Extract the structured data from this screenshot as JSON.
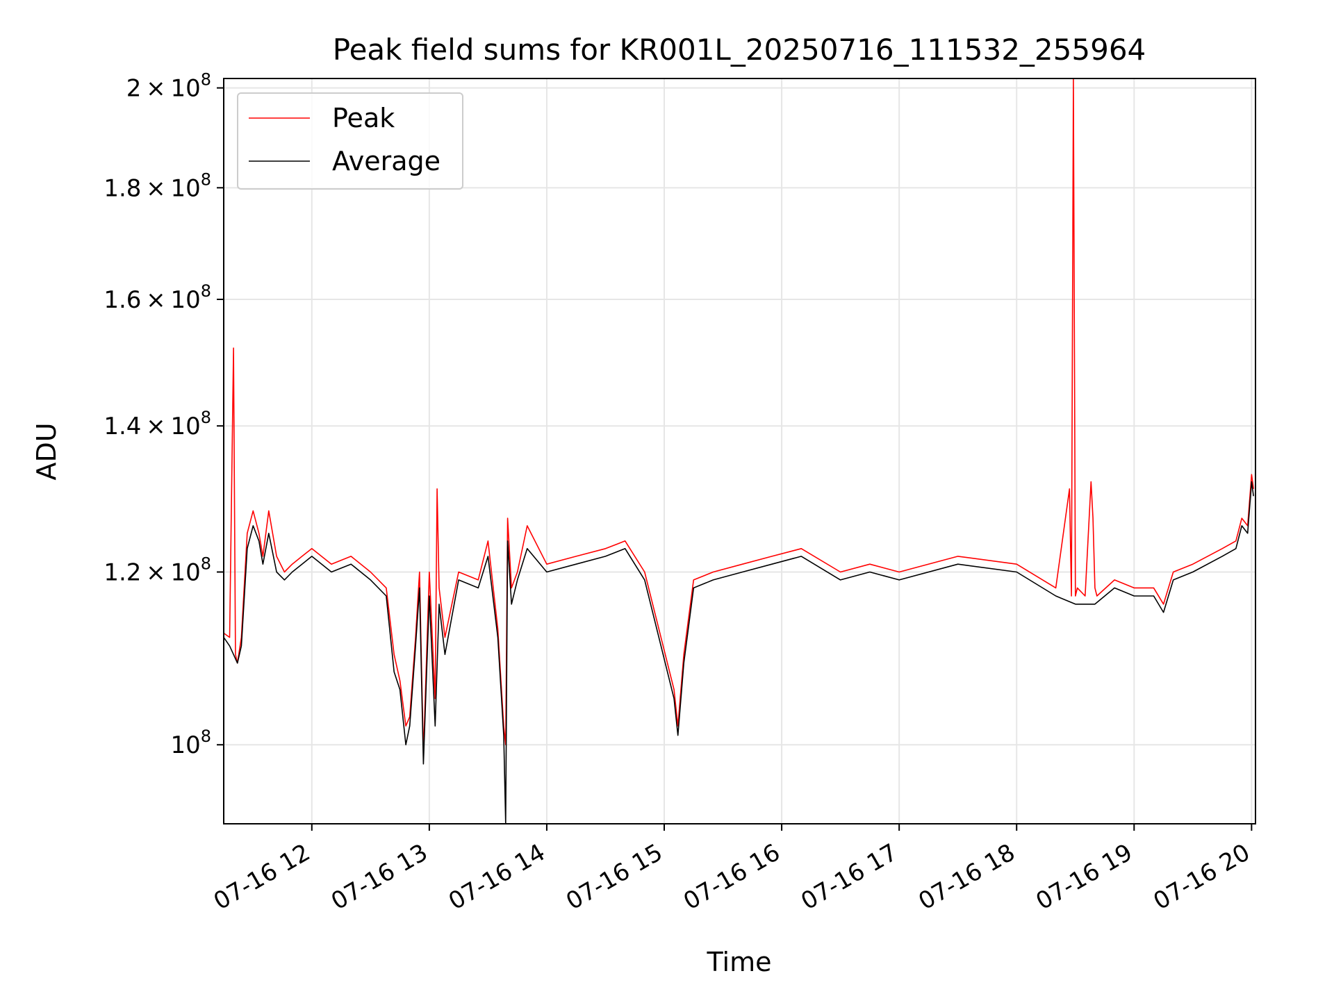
{
  "chart_data": {
    "type": "line",
    "title": "Peak field sums for KR001L_20250716_111532_255964",
    "xlabel": "Time",
    "ylabel": "ADU",
    "yscale": "log",
    "xlim": [
      "2025-07-16 11:15",
      "2025-07-16 20:02"
    ],
    "ylim": [
      92000000.0,
      202000000.0
    ],
    "x_ticks": [
      "07-16 12",
      "07-16 13",
      "07-16 14",
      "07-16 15",
      "07-16 16",
      "07-16 17",
      "07-16 18",
      "07-16 19",
      "07-16 20"
    ],
    "y_ticks": [
      {
        "value": 100000000.0,
        "mantissa": "",
        "exponent": "8"
      },
      {
        "value": 120000000.0,
        "mantissa": "1.2",
        "exponent": "8"
      },
      {
        "value": 140000000.0,
        "mantissa": "1.4",
        "exponent": "8"
      },
      {
        "value": 160000000.0,
        "mantissa": "1.6",
        "exponent": "8"
      },
      {
        "value": 180000000.0,
        "mantissa": "1.8",
        "exponent": "8"
      },
      {
        "value": 200000000.0,
        "mantissa": "2",
        "exponent": "8"
      }
    ],
    "grid": true,
    "legend_position": "upper-left",
    "series": [
      {
        "name": "Peak",
        "color": "#ff0000",
        "x": [
          "2025-07-16 11:15",
          "2025-07-16 11:18",
          "2025-07-16 11:20",
          "2025-07-16 11:21",
          "2025-07-16 11:22",
          "2025-07-16 11:24",
          "2025-07-16 11:27",
          "2025-07-16 11:30",
          "2025-07-16 11:33",
          "2025-07-16 11:35",
          "2025-07-16 11:38",
          "2025-07-16 11:42",
          "2025-07-16 11:46",
          "2025-07-16 11:50",
          "2025-07-16 11:55",
          "2025-07-16 12:00",
          "2025-07-16 12:10",
          "2025-07-16 12:20",
          "2025-07-16 12:30",
          "2025-07-16 12:38",
          "2025-07-16 12:42",
          "2025-07-16 12:45",
          "2025-07-16 12:48",
          "2025-07-16 12:50",
          "2025-07-16 12:53",
          "2025-07-16 12:55",
          "2025-07-16 12:57",
          "2025-07-16 13:00",
          "2025-07-16 13:03",
          "2025-07-16 13:04",
          "2025-07-16 13:05",
          "2025-07-16 13:08",
          "2025-07-16 13:15",
          "2025-07-16 13:25",
          "2025-07-16 13:30",
          "2025-07-16 13:35",
          "2025-07-16 13:38",
          "2025-07-16 13:39",
          "2025-07-16 13:40",
          "2025-07-16 13:42",
          "2025-07-16 13:45",
          "2025-07-16 13:50",
          "2025-07-16 14:00",
          "2025-07-16 14:15",
          "2025-07-16 14:30",
          "2025-07-16 14:40",
          "2025-07-16 14:50",
          "2025-07-16 15:05",
          "2025-07-16 15:07",
          "2025-07-16 15:10",
          "2025-07-16 15:15",
          "2025-07-16 15:25",
          "2025-07-16 15:40",
          "2025-07-16 15:55",
          "2025-07-16 16:10",
          "2025-07-16 16:30",
          "2025-07-16 16:45",
          "2025-07-16 17:00",
          "2025-07-16 17:30",
          "2025-07-16 18:00",
          "2025-07-16 18:20",
          "2025-07-16 18:27",
          "2025-07-16 18:28",
          "2025-07-16 18:29",
          "2025-07-16 18:30",
          "2025-07-16 18:31",
          "2025-07-16 18:35",
          "2025-07-16 18:38",
          "2025-07-16 18:39",
          "2025-07-16 18:40",
          "2025-07-16 18:41",
          "2025-07-16 18:50",
          "2025-07-16 19:00",
          "2025-07-16 19:10",
          "2025-07-16 19:15",
          "2025-07-16 19:20",
          "2025-07-16 19:30",
          "2025-07-16 19:45",
          "2025-07-16 19:52",
          "2025-07-16 19:55",
          "2025-07-16 19:58",
          "2025-07-16 20:00",
          "2025-07-16 20:01"
        ],
        "values": [
          112500000.0,
          112000000.0,
          152000000.0,
          110000000.0,
          109000000.0,
          112000000.0,
          125000000.0,
          128000000.0,
          125000000.0,
          122000000.0,
          128000000.0,
          122000000.0,
          120000000.0,
          121000000.0,
          122000000.0,
          123000000.0,
          121000000.0,
          122000000.0,
          120000000.0,
          118000000.0,
          110000000.0,
          107000000.0,
          102000000.0,
          103000000.0,
          112000000.0,
          120000000.0,
          99000000.0,
          120000000.0,
          105000000.0,
          131000000.0,
          118000000.0,
          112000000.0,
          120000000.0,
          119000000.0,
          124000000.0,
          113000000.0,
          102000000.0,
          100000000.0,
          127000000.0,
          118000000.0,
          120000000.0,
          126000000.0,
          121000000.0,
          122000000.0,
          123000000.0,
          124000000.0,
          120000000.0,
          106000000.0,
          102000000.0,
          110000000.0,
          119000000.0,
          120000000.0,
          121000000.0,
          122000000.0,
          123000000.0,
          120000000.0,
          121000000.0,
          120000000.0,
          122000000.0,
          121000000.0,
          118000000.0,
          131000000.0,
          117000000.0,
          203000000.0,
          117000000.0,
          118000000.0,
          117000000.0,
          132000000.0,
          127000000.0,
          118000000.0,
          117000000.0,
          119000000.0,
          118000000.0,
          118000000.0,
          116000000.0,
          120000000.0,
          121000000.0,
          123000000.0,
          124000000.0,
          127000000.0,
          126000000.0,
          133000000.0,
          131000000.0
        ]
      },
      {
        "name": "Average",
        "color": "#000000",
        "x": [
          "2025-07-16 11:15",
          "2025-07-16 11:18",
          "2025-07-16 11:20",
          "2025-07-16 11:22",
          "2025-07-16 11:24",
          "2025-07-16 11:27",
          "2025-07-16 11:30",
          "2025-07-16 11:33",
          "2025-07-16 11:35",
          "2025-07-16 11:38",
          "2025-07-16 11:42",
          "2025-07-16 11:46",
          "2025-07-16 11:50",
          "2025-07-16 11:55",
          "2025-07-16 12:00",
          "2025-07-16 12:10",
          "2025-07-16 12:20",
          "2025-07-16 12:30",
          "2025-07-16 12:38",
          "2025-07-16 12:42",
          "2025-07-16 12:45",
          "2025-07-16 12:48",
          "2025-07-16 12:50",
          "2025-07-16 12:53",
          "2025-07-16 12:55",
          "2025-07-16 12:57",
          "2025-07-16 13:00",
          "2025-07-16 13:03",
          "2025-07-16 13:05",
          "2025-07-16 13:08",
          "2025-07-16 13:15",
          "2025-07-16 13:25",
          "2025-07-16 13:30",
          "2025-07-16 13:35",
          "2025-07-16 13:38",
          "2025-07-16 13:39",
          "2025-07-16 13:40",
          "2025-07-16 13:42",
          "2025-07-16 13:45",
          "2025-07-16 13:50",
          "2025-07-16 14:00",
          "2025-07-16 14:15",
          "2025-07-16 14:30",
          "2025-07-16 14:40",
          "2025-07-16 14:50",
          "2025-07-16 15:05",
          "2025-07-16 15:07",
          "2025-07-16 15:10",
          "2025-07-16 15:15",
          "2025-07-16 15:25",
          "2025-07-16 15:40",
          "2025-07-16 15:55",
          "2025-07-16 16:10",
          "2025-07-16 16:30",
          "2025-07-16 16:45",
          "2025-07-16 17:00",
          "2025-07-16 17:30",
          "2025-07-16 18:00",
          "2025-07-16 18:20",
          "2025-07-16 18:30",
          "2025-07-16 18:40",
          "2025-07-16 18:50",
          "2025-07-16 19:00",
          "2025-07-16 19:10",
          "2025-07-16 19:15",
          "2025-07-16 19:20",
          "2025-07-16 19:30",
          "2025-07-16 19:45",
          "2025-07-16 19:52",
          "2025-07-16 19:55",
          "2025-07-16 19:58",
          "2025-07-16 20:00",
          "2025-07-16 20:01"
        ],
        "values": [
          112000000.0,
          111000000.0,
          110000000.0,
          109000000.0,
          111000000.0,
          123000000.0,
          126000000.0,
          124000000.0,
          121000000.0,
          125000000.0,
          120000000.0,
          119000000.0,
          120000000.0,
          121000000.0,
          122000000.0,
          120000000.0,
          121000000.0,
          119000000.0,
          117000000.0,
          108000000.0,
          106000000.0,
          100000000.0,
          102000000.0,
          111000000.0,
          118000000.0,
          98000000.0,
          117000000.0,
          102000000.0,
          116000000.0,
          110000000.0,
          119000000.0,
          118000000.0,
          122000000.0,
          112000000.0,
          101000000.0,
          92000000.0,
          124000000.0,
          116000000.0,
          119000000.0,
          123000000.0,
          120000000.0,
          121000000.0,
          122000000.0,
          123000000.0,
          119000000.0,
          105000000.0,
          101000000.0,
          109000000.0,
          118000000.0,
          119000000.0,
          120000000.0,
          121000000.0,
          122000000.0,
          119000000.0,
          120000000.0,
          119000000.0,
          121000000.0,
          120000000.0,
          117000000.0,
          116000000.0,
          116000000.0,
          118000000.0,
          117000000.0,
          117000000.0,
          115000000.0,
          119000000.0,
          120000000.0,
          122000000.0,
          123000000.0,
          126000000.0,
          125000000.0,
          132000000.0,
          130000000.0
        ]
      }
    ]
  }
}
